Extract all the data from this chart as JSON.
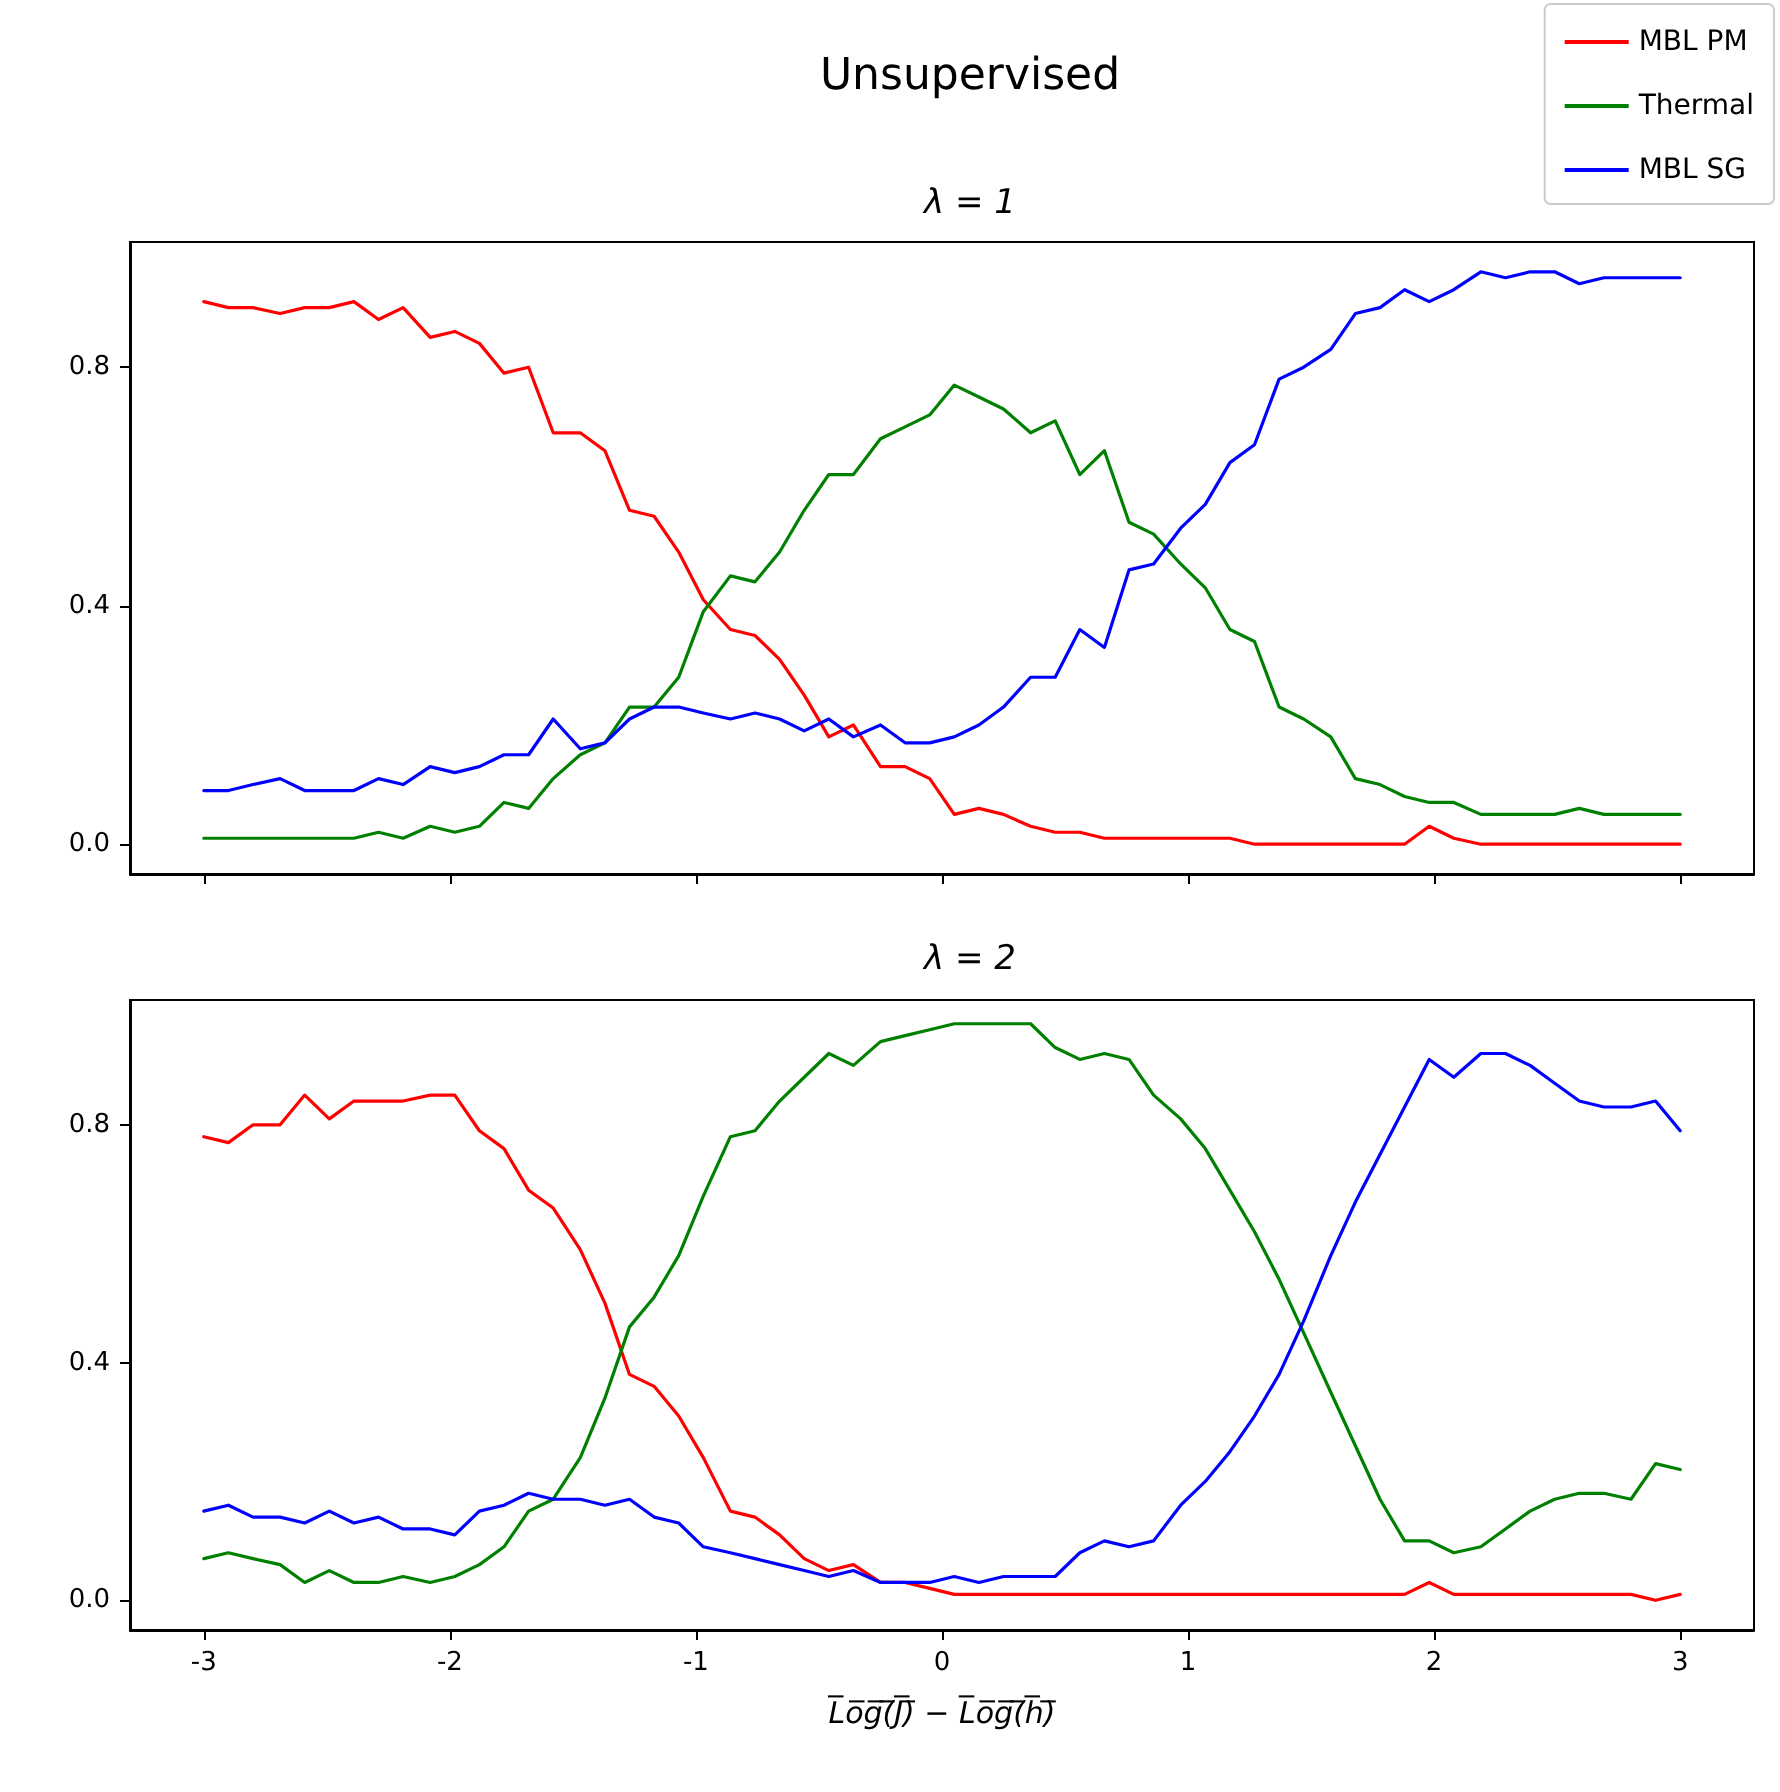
{
  "chart_data": [
    {
      "type": "line",
      "title": "Unsupervised",
      "subtitle": "λ = 1",
      "legend": "top right",
      "marker": "none",
      "line_style": "solid",
      "tick_labels": "y",
      "x": [
        -3.0,
        -2.9,
        -2.8,
        -2.69,
        -2.59,
        -2.49,
        -2.39,
        -2.29,
        -2.19,
        -2.08,
        -1.98,
        -1.88,
        -1.78,
        -1.68,
        -1.58,
        -1.47,
        -1.37,
        -1.27,
        -1.17,
        -1.07,
        -0.97,
        -0.86,
        -0.76,
        -0.66,
        -0.56,
        -0.46,
        -0.36,
        -0.25,
        -0.15,
        -0.05,
        0.05,
        0.15,
        0.25,
        0.36,
        0.46,
        0.56,
        0.66,
        0.76,
        0.86,
        0.97,
        1.07,
        1.17,
        1.27,
        1.37,
        1.47,
        1.58,
        1.68,
        1.78,
        1.88,
        1.98,
        2.08,
        2.19,
        2.29,
        2.39,
        2.49,
        2.59,
        2.69,
        2.8,
        2.9,
        3.0
      ],
      "xlim": [
        -3.3,
        3.3
      ],
      "xticks": [
        -3,
        -2,
        -1,
        0,
        1,
        2,
        3
      ],
      "ylim": [
        -0.05,
        1.01
      ],
      "yticks": [
        {
          "value": 0,
          "label": "0.0"
        },
        {
          "value": 0.4,
          "label": "0.4"
        },
        {
          "value": 0.8,
          "label": "0.8"
        }
      ],
      "series": [
        {
          "name": "MBL PM",
          "color": "#ff0000",
          "values": [
            0.91,
            0.9,
            0.9,
            0.89,
            0.9,
            0.9,
            0.91,
            0.88,
            0.9,
            0.85,
            0.86,
            0.84,
            0.79,
            0.8,
            0.69,
            0.69,
            0.66,
            0.56,
            0.55,
            0.49,
            0.41,
            0.36,
            0.35,
            0.31,
            0.25,
            0.18,
            0.2,
            0.13,
            0.13,
            0.11,
            0.05,
            0.06,
            0.05,
            0.03,
            0.02,
            0.02,
            0.01,
            0.01,
            0.01,
            0.01,
            0.01,
            0.01,
            0.0,
            0.0,
            0.0,
            0.0,
            0.0,
            0.0,
            0.0,
            0.03,
            0.01,
            0.0,
            0.0,
            0.0,
            0.0,
            0.0,
            0.0,
            0.0,
            0.0,
            0.0
          ]
        },
        {
          "name": "Thermal",
          "color": "#008000",
          "values": [
            0.01,
            0.01,
            0.01,
            0.01,
            0.01,
            0.01,
            0.01,
            0.02,
            0.01,
            0.03,
            0.02,
            0.03,
            0.07,
            0.06,
            0.11,
            0.15,
            0.17,
            0.23,
            0.23,
            0.28,
            0.39,
            0.45,
            0.44,
            0.49,
            0.56,
            0.62,
            0.62,
            0.68,
            0.7,
            0.72,
            0.77,
            0.75,
            0.73,
            0.69,
            0.71,
            0.62,
            0.66,
            0.54,
            0.52,
            0.47,
            0.43,
            0.36,
            0.34,
            0.23,
            0.21,
            0.18,
            0.11,
            0.1,
            0.08,
            0.07,
            0.07,
            0.05,
            0.05,
            0.05,
            0.05,
            0.06,
            0.05,
            0.05,
            0.05,
            0.05
          ]
        },
        {
          "name": "MBL SG",
          "color": "#0000ff",
          "values": [
            0.09,
            0.09,
            0.1,
            0.11,
            0.09,
            0.09,
            0.09,
            0.11,
            0.1,
            0.13,
            0.12,
            0.13,
            0.15,
            0.15,
            0.21,
            0.16,
            0.17,
            0.21,
            0.23,
            0.23,
            0.22,
            0.21,
            0.22,
            0.21,
            0.19,
            0.21,
            0.18,
            0.2,
            0.17,
            0.17,
            0.18,
            0.2,
            0.23,
            0.28,
            0.28,
            0.36,
            0.33,
            0.46,
            0.47,
            0.53,
            0.57,
            0.64,
            0.67,
            0.78,
            0.8,
            0.83,
            0.89,
            0.9,
            0.93,
            0.91,
            0.93,
            0.96,
            0.95,
            0.96,
            0.96,
            0.94,
            0.95,
            0.95,
            0.95,
            0.95
          ]
        }
      ]
    },
    {
      "type": "line",
      "title": "λ = 2",
      "xlabel": "L̅o̅g̅(̅J̅)̅ − L̅o̅g̅(̅h̅)̅",
      "marker": "none",
      "line_style": "solid",
      "x": [
        -3.0,
        -2.9,
        -2.8,
        -2.69,
        -2.59,
        -2.49,
        -2.39,
        -2.29,
        -2.19,
        -2.08,
        -1.98,
        -1.88,
        -1.78,
        -1.68,
        -1.58,
        -1.47,
        -1.37,
        -1.27,
        -1.17,
        -1.07,
        -0.97,
        -0.86,
        -0.76,
        -0.66,
        -0.56,
        -0.46,
        -0.36,
        -0.25,
        -0.15,
        -0.05,
        0.05,
        0.15,
        0.25,
        0.36,
        0.46,
        0.56,
        0.66,
        0.76,
        0.86,
        0.97,
        1.07,
        1.17,
        1.27,
        1.37,
        1.47,
        1.58,
        1.68,
        1.78,
        1.88,
        1.98,
        2.08,
        2.19,
        2.29,
        2.39,
        2.49,
        2.59,
        2.69,
        2.8,
        2.9,
        3.0
      ],
      "xlim": [
        -3.3,
        3.3
      ],
      "xticks": [
        -3,
        -2,
        -1,
        0,
        1,
        2,
        3
      ],
      "ylim": [
        -0.05,
        1.01
      ],
      "yticks": [
        {
          "value": 0,
          "label": "0.0"
        },
        {
          "value": 0.4,
          "label": "0.4"
        },
        {
          "value": 0.8,
          "label": "0.8"
        }
      ],
      "series": [
        {
          "color": "#ff0000",
          "values": [
            0.78,
            0.77,
            0.8,
            0.8,
            0.85,
            0.81,
            0.84,
            0.84,
            0.84,
            0.85,
            0.85,
            0.79,
            0.76,
            0.69,
            0.66,
            0.59,
            0.5,
            0.38,
            0.36,
            0.31,
            0.24,
            0.15,
            0.14,
            0.11,
            0.07,
            0.05,
            0.06,
            0.03,
            0.03,
            0.02,
            0.01,
            0.01,
            0.01,
            0.01,
            0.01,
            0.01,
            0.01,
            0.01,
            0.01,
            0.01,
            0.01,
            0.01,
            0.01,
            0.01,
            0.01,
            0.01,
            0.01,
            0.01,
            0.01,
            0.03,
            0.01,
            0.01,
            0.01,
            0.01,
            0.01,
            0.01,
            0.01,
            0.01,
            0.0,
            0.01
          ]
        },
        {
          "color": "#008000",
          "values": [
            0.07,
            0.08,
            0.07,
            0.06,
            0.03,
            0.05,
            0.03,
            0.03,
            0.04,
            0.03,
            0.04,
            0.06,
            0.09,
            0.15,
            0.17,
            0.24,
            0.34,
            0.46,
            0.51,
            0.58,
            0.68,
            0.78,
            0.79,
            0.84,
            0.88,
            0.92,
            0.9,
            0.94,
            0.95,
            0.96,
            0.97,
            0.97,
            0.97,
            0.97,
            0.93,
            0.91,
            0.92,
            0.91,
            0.85,
            0.81,
            0.76,
            0.69,
            0.62,
            0.54,
            0.45,
            0.35,
            0.26,
            0.17,
            0.1,
            0.1,
            0.08,
            0.09,
            0.12,
            0.15,
            0.17,
            0.18,
            0.18,
            0.17,
            0.23,
            0.22
          ]
        },
        {
          "color": "#0000ff",
          "values": [
            0.15,
            0.16,
            0.14,
            0.14,
            0.13,
            0.15,
            0.13,
            0.14,
            0.12,
            0.12,
            0.11,
            0.15,
            0.16,
            0.18,
            0.17,
            0.17,
            0.16,
            0.17,
            0.14,
            0.13,
            0.09,
            0.08,
            0.07,
            0.06,
            0.05,
            0.04,
            0.05,
            0.03,
            0.03,
            0.03,
            0.04,
            0.03,
            0.04,
            0.04,
            0.04,
            0.08,
            0.1,
            0.09,
            0.1,
            0.16,
            0.2,
            0.25,
            0.31,
            0.38,
            0.47,
            0.58,
            0.67,
            0.75,
            0.83,
            0.91,
            0.88,
            0.92,
            0.92,
            0.9,
            0.87,
            0.84,
            0.83,
            0.83,
            0.84,
            0.79
          ]
        }
      ]
    }
  ]
}
